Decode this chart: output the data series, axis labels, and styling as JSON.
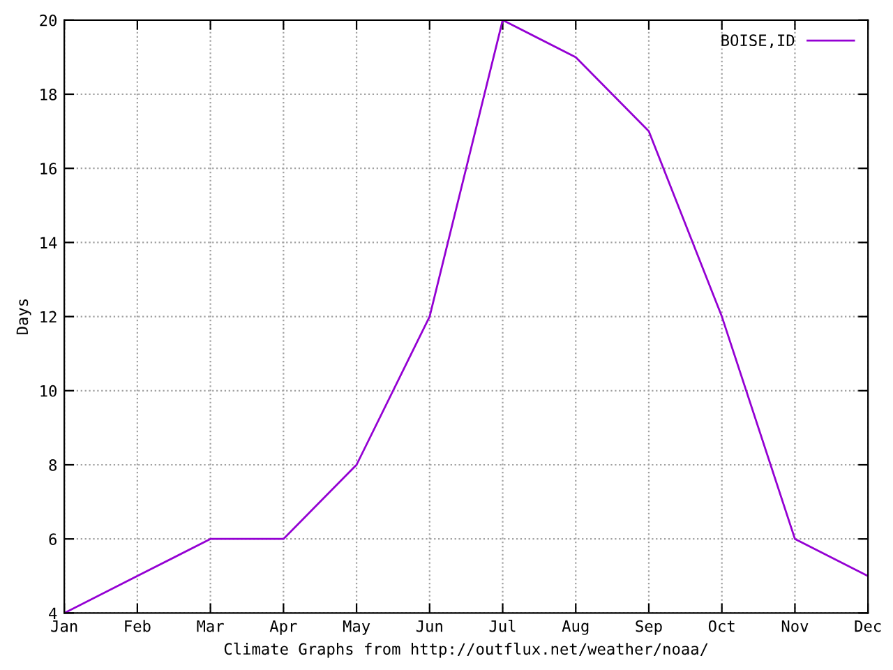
{
  "chart_data": {
    "type": "line",
    "categories": [
      "Jan",
      "Feb",
      "Mar",
      "Apr",
      "May",
      "Jun",
      "Jul",
      "Aug",
      "Sep",
      "Oct",
      "Nov",
      "Dec"
    ],
    "series": [
      {
        "name": "BOISE,ID",
        "color": "#9400d3",
        "values": [
          4,
          5,
          6,
          6,
          8,
          12,
          20,
          19,
          17,
          12,
          6,
          5
        ]
      }
    ],
    "ylabel": "Days",
    "xlabel": "Climate Graphs from http://outflux.net/weather/noaa/",
    "ylim": [
      4,
      20
    ],
    "yticks": [
      4,
      6,
      8,
      10,
      12,
      14,
      16,
      18,
      20
    ],
    "grid": true,
    "legend": "top right",
    "marker": "none",
    "line_style": "solid"
  }
}
